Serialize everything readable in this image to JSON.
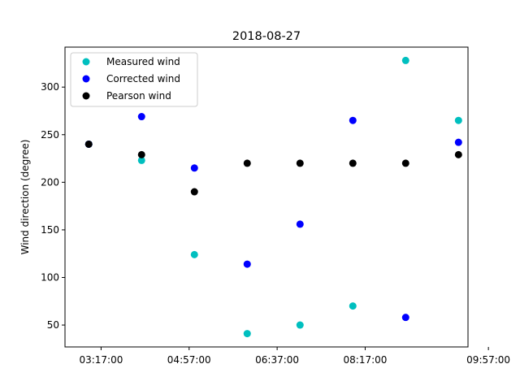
{
  "chart_data": {
    "type": "scatter",
    "title": "2018-08-27",
    "xlabel": "",
    "ylabel": "Wind direction (degree)",
    "x": [
      "02:47:00",
      "03:37:00",
      "04:27:00",
      "05:17:00",
      "06:07:00",
      "06:57:00",
      "07:47:00",
      "08:37:00"
    ],
    "xticks": [
      "03:17:00",
      "04:57:00",
      "06:37:00",
      "08:17:00",
      "09:57:00"
    ],
    "yticks": [
      "50",
      "100",
      "150",
      "200",
      "250",
      "300"
    ],
    "xlim": [
      2.6,
      10.23
    ],
    "ylim": [
      27,
      342
    ],
    "legend_position": "upper-left",
    "series": [
      {
        "name": "Measured wind",
        "color": "#00bfbf",
        "x": [
          3.05,
          4.05,
          5.05,
          6.05,
          7.05,
          8.05,
          9.05,
          10.05
        ],
        "values": [
          240,
          223,
          124,
          41,
          50,
          70,
          328,
          265
        ]
      },
      {
        "name": "Corrected wind",
        "color": "#0000ff",
        "x": [
          3.05,
          4.05,
          5.05,
          6.05,
          7.05,
          8.05,
          9.05,
          10.05
        ],
        "values": [
          240,
          269,
          215,
          114,
          156,
          265,
          58,
          242
        ]
      },
      {
        "name": "Pearson wind",
        "color": "#000000",
        "x": [
          3.05,
          4.05,
          5.05,
          6.05,
          7.05,
          8.05,
          9.05,
          10.05
        ],
        "values": [
          240,
          229,
          190,
          220,
          220,
          220,
          220,
          229
        ]
      }
    ]
  }
}
